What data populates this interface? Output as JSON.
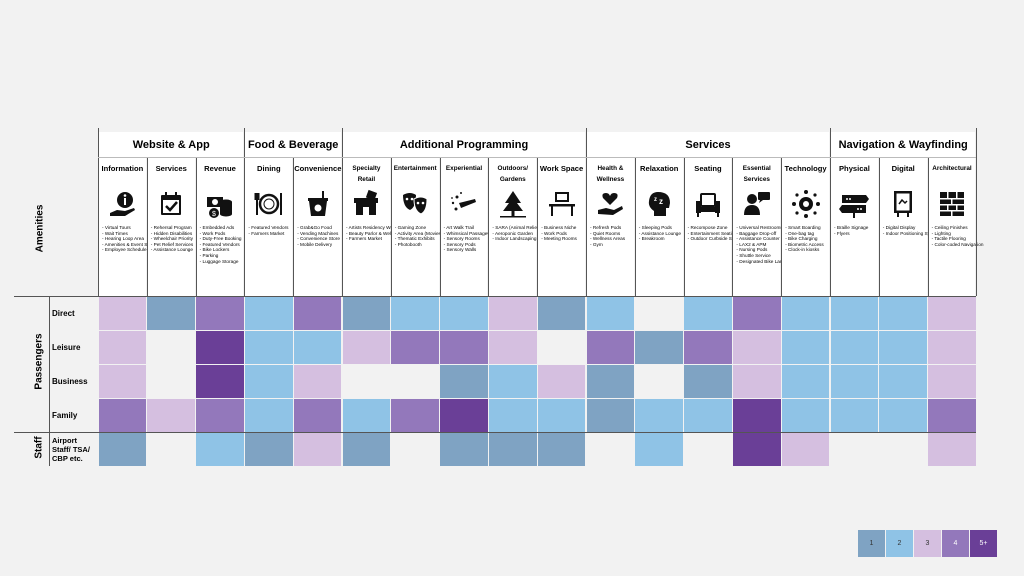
{
  "colors": {
    "1": "#7fa3c3",
    "2": "#8fc3e6",
    "3": "#d5bfe0",
    "4": "#9378bb",
    "5": "#6a3f97",
    "0": "#f2f2f2"
  },
  "groups": [
    {
      "label": "Website & App",
      "cols": [
        0,
        2
      ]
    },
    {
      "label": "Food & Beverage",
      "cols": [
        3,
        4
      ]
    },
    {
      "label": "Additional Programming",
      "cols": [
        5,
        9
      ]
    },
    {
      "label": "Services",
      "cols": [
        10,
        14
      ]
    },
    {
      "label": "Navigation & Wayfinding",
      "cols": [
        15,
        17
      ]
    }
  ],
  "amenities_label": "Amenities",
  "passengers_label": "Passengers",
  "staff_label": "Staff",
  "columns": [
    {
      "title": "Information",
      "icon": "info-hand-icon",
      "items": [
        "- Virtual Tours",
        "- Wait Times",
        "- Hearing Loop Area",
        "- Amenities & Event Schedule",
        "- Employee Schedule"
      ]
    },
    {
      "title": "Services",
      "icon": "calendar-check-icon",
      "items": [
        "- Rehersal Program",
        "- Hidden Disabilities",
        "- Wheelchair Priority",
        "- Pet Relief Services",
        "- Assistance Lounge"
      ]
    },
    {
      "title": "Revenue",
      "icon": "money-coins-icon",
      "items": [
        "- Embedded Ads",
        "- Work Pods",
        "- Duty-Free Booking",
        "- Featured Vendors",
        "- Bike Lockers",
        "- Parking",
        "- Luggage Storage"
      ]
    },
    {
      "title": "Dining",
      "icon": "plate-cutlery-icon",
      "items": [
        "- Featured Vendors",
        "- Farmers Market"
      ]
    },
    {
      "title": "Convenience",
      "icon": "takeaway-food-icon",
      "items": [
        "- Grab&Go Food",
        "- Vending Machines",
        "- Convenience Store",
        "- Mobile Delivery"
      ]
    },
    {
      "title": "Specialty Retail",
      "icon": "shop-icon",
      "items": [
        "- Artists Residency Workshop",
        "- Beauty Parlor & Wellness",
        "- Farmers Market"
      ]
    },
    {
      "title": "Entertainment",
      "icon": "theater-masks-icon",
      "items": [
        "- Gaming Zone",
        "- Activity Area (Movies)",
        "- Thematic Exhibits",
        "- Photobooth"
      ]
    },
    {
      "title": "Experiential",
      "icon": "sparkle-hand-icon",
      "items": [
        "- Art Walk Trail",
        "- Whimsical Passageway",
        "- Sensory Rooms",
        "- Sensory Pods",
        "- Sensory Walls"
      ]
    },
    {
      "title": "Outdoors/ Gardens",
      "icon": "tree-icon",
      "items": [
        "- SARA (Animal Relief)",
        "- Aeroponic Garden",
        "- Indoor Landscaping"
      ]
    },
    {
      "title": "Work Space",
      "icon": "desk-icon",
      "items": [
        "- Business Niche",
        "- Work Pods",
        "- Meeting Rooms"
      ]
    },
    {
      "title": "Health & Wellness",
      "icon": "heart-hand-icon",
      "items": [
        "- Refresh Pods",
        "- Quiet Rooms",
        "- Wellness Areas",
        "- Gym"
      ]
    },
    {
      "title": "Relaxation",
      "icon": "sleep-head-icon",
      "items": [
        "- Sleeping Pods",
        "- Assistance Lounge",
        "- Breakroom"
      ]
    },
    {
      "title": "Seating",
      "icon": "armchair-icon",
      "items": [
        "- Recompose Zone",
        "- Entertainment Seating",
        "- Outdoor Curbside Seating"
      ]
    },
    {
      "title": "Essential Services",
      "icon": "assistant-icon",
      "items": [
        "- Universal Restrooms",
        "- Baggage Drop-off",
        "- Assistance Counter",
        "- LAX2 & APM",
        "- Nursing Pods",
        "- Shuttle Service",
        "- Designated Bike Lanes"
      ]
    },
    {
      "title": "Technology",
      "icon": "gear-network-icon",
      "items": [
        "- Smart Boarding",
        "- One-bag tag",
        "- Bike Charging",
        "- Biometric Access",
        "- Clock-in kiosks"
      ]
    },
    {
      "title": "Physical",
      "icon": "braille-sign-icon",
      "items": [
        "- Braille Signage",
        "- Flyers"
      ]
    },
    {
      "title": "Digital",
      "icon": "digital-display-icon",
      "items": [
        "- Digital Display",
        "- Indoor Positioning System (IPS)"
      ]
    },
    {
      "title": "Architectural",
      "icon": "wall-tiles-icon",
      "items": [
        "- Ceiling Finishes",
        "- Lighting",
        "- Tactile Flooring",
        "- Color-coded Navigation"
      ]
    }
  ],
  "chart_data": {
    "type": "heatmap",
    "x": [
      "Information",
      "Services",
      "Revenue",
      "Dining",
      "Convenience",
      "Specialty Retail",
      "Entertainment",
      "Experiential",
      "Outdoors/ Gardens",
      "Work Space",
      "Health & Wellness",
      "Relaxation",
      "Seating",
      "Essential Services",
      "Technology",
      "Physical",
      "Digital",
      "Architectural"
    ],
    "y": [
      "Direct",
      "Leisure",
      "Business",
      "Family",
      "Airport Staff/ TSA/ CBP etc."
    ],
    "values": [
      [
        3,
        1,
        4,
        2,
        4,
        1,
        2,
        2,
        3,
        1,
        2,
        0,
        2,
        4,
        2,
        2,
        2,
        3
      ],
      [
        3,
        0,
        5,
        2,
        2,
        3,
        4,
        4,
        3,
        0,
        4,
        1,
        4,
        3,
        2,
        2,
        2,
        3
      ],
      [
        3,
        0,
        5,
        2,
        3,
        0,
        0,
        1,
        2,
        3,
        1,
        0,
        1,
        3,
        2,
        2,
        2,
        3
      ],
      [
        4,
        3,
        4,
        2,
        4,
        2,
        4,
        5,
        2,
        2,
        1,
        2,
        2,
        5,
        2,
        2,
        2,
        4
      ],
      [
        1,
        0,
        2,
        1,
        3,
        1,
        0,
        1,
        1,
        1,
        0,
        2,
        0,
        5,
        3,
        0,
        0,
        3
      ]
    ],
    "legend": [
      "1",
      "2",
      "3",
      "4",
      "5+"
    ]
  }
}
